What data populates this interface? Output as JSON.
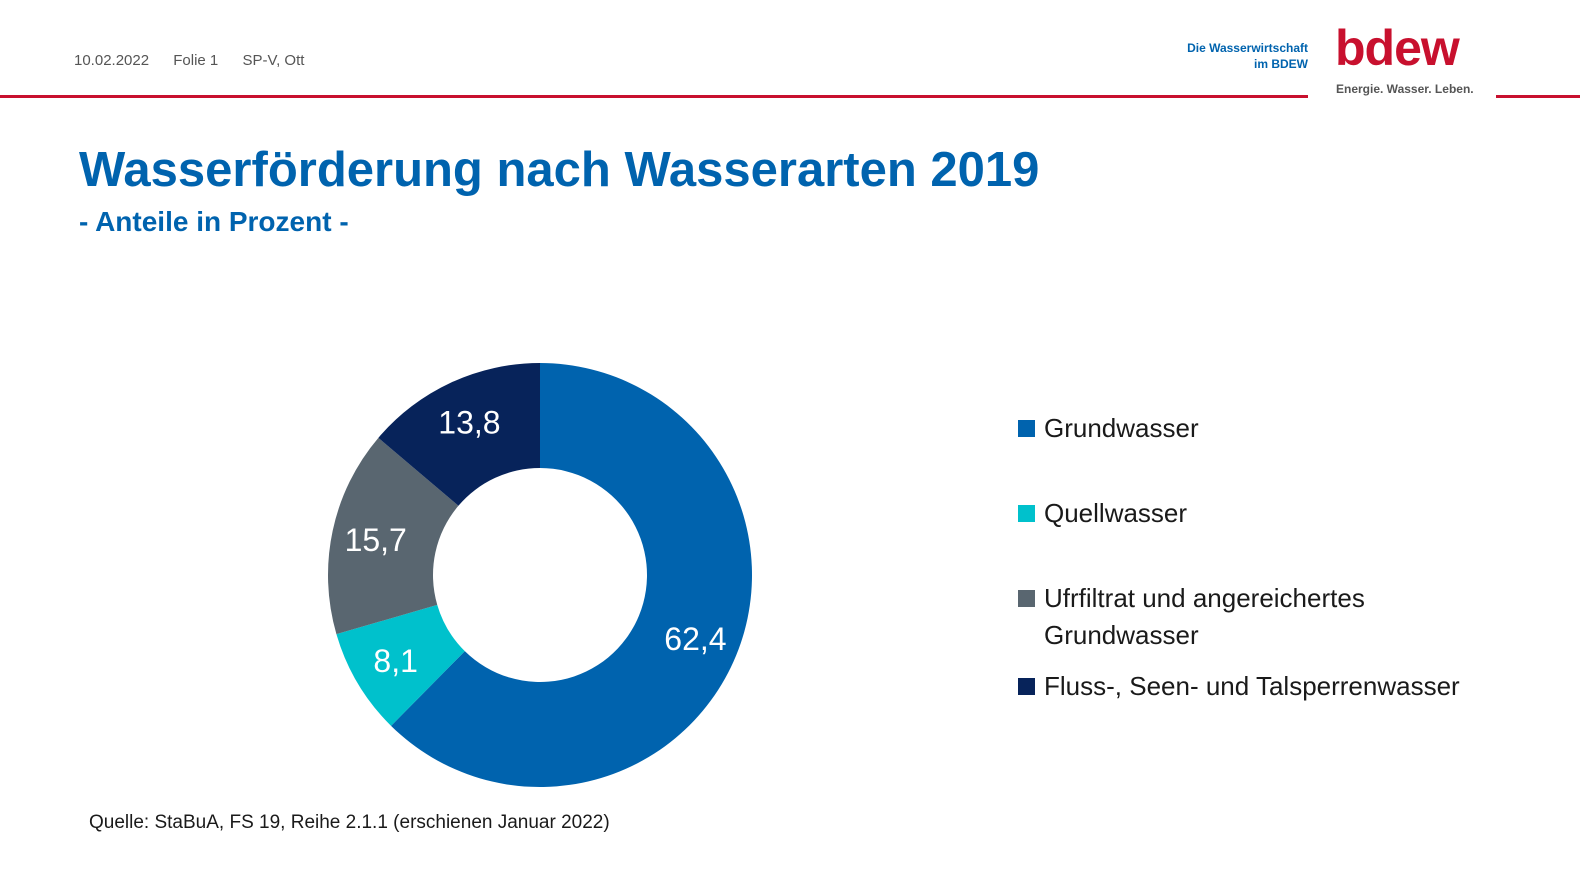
{
  "header": {
    "date": "10.02.2022",
    "slide": "Folie 1",
    "author": "SP-V, Ott",
    "brand_tag_line1": "Die Wasserwirtschaft",
    "brand_tag_line2": "im BDEW",
    "logo_text": "bdew",
    "logo_sub": "Energie. Wasser. Leben.",
    "accent_color": "#c8102e"
  },
  "chart_data": {
    "type": "pie",
    "title": "Wasserförderung nach Wasserarten 2019",
    "subtitle": "- Anteile in Prozent -",
    "legend_position": "right",
    "series": [
      {
        "name": "Grundwasser",
        "value": 62.4,
        "label": "62,4",
        "color": "#0063ae"
      },
      {
        "name": "Quellwasser",
        "value": 8.1,
        "label": "8,1",
        "color": "#00c1cc"
      },
      {
        "name": "Ufrfiltrat und angereichertes Grundwasser",
        "value": 15.7,
        "label": "15,7",
        "color": "#596670"
      },
      {
        "name": "Fluss-, Seen- und Talsperrenwasser",
        "value": 13.8,
        "label": "13,8",
        "color": "#07235a"
      }
    ]
  },
  "footer": {
    "source": "Quelle: StaBuA, FS 19, Reihe 2.1.1 (erschienen Januar 2022)"
  }
}
